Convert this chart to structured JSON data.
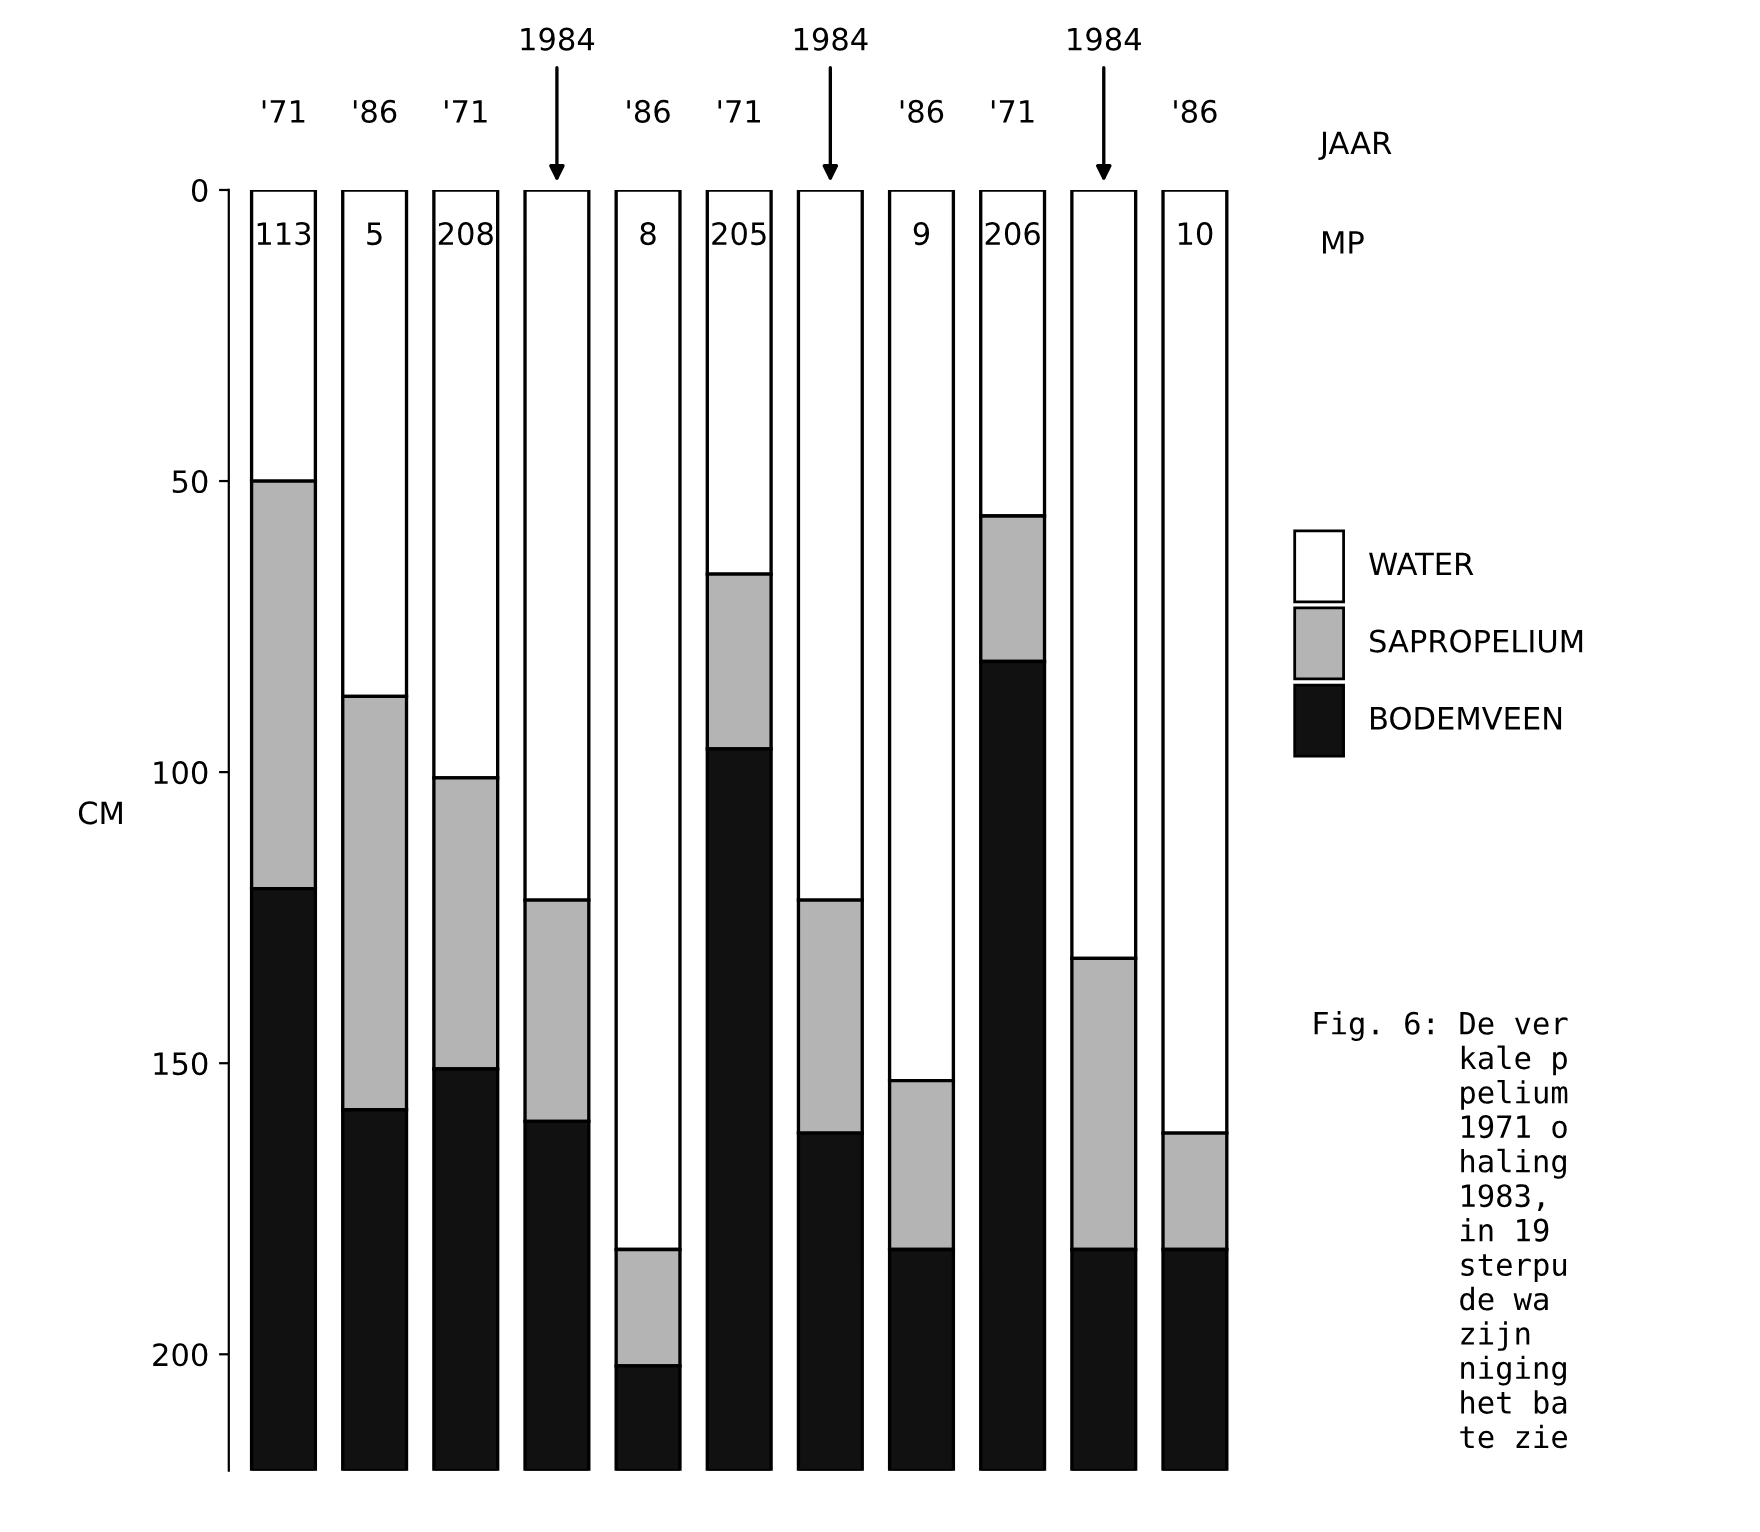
{
  "chart_data": {
    "type": "bar",
    "stacked": true,
    "categories": [
      "113",
      "5",
      "208",
      null,
      "8",
      "205",
      null,
      "9",
      "206",
      null,
      "10"
    ],
    "ylabel": "CM",
    "series": [
      {
        "name": "WATER",
        "color": "#ffffff",
        "values": [
          50,
          87,
          101,
          122,
          182,
          66,
          122,
          153,
          56,
          132,
          162
        ]
      },
      {
        "name": "SAPROPELIUM",
        "color": "#b4b4b4",
        "values": [
          70,
          71,
          50,
          38,
          20,
          30,
          40,
          29,
          25,
          50,
          20
        ]
      },
      {
        "name": "BODEMVEEN",
        "color": "#111111",
        "values": [
          100,
          62,
          69,
          60,
          18,
          124,
          58,
          38,
          139,
          38,
          38
        ]
      }
    ],
    "ylim": [
      220,
      0
    ],
    "yticks": [
      0,
      50,
      100,
      150,
      200
    ],
    "legend": "right",
    "grid": false,
    "annotations": [
      "'71",
      "'86",
      "'71",
      "1984",
      "'86",
      "'71",
      "1984",
      "'86",
      "'71",
      "1984",
      "'86",
      "JAAR",
      "MP",
      "Fig. 6: De ver\n        kale p\n        pelium\n        1971 o\n        haling\n        1983,\n        in 19\n        sterpu\n        de wa\n        zijn\n        niging\n        het ba\n        te zie"
    ]
  }
}
